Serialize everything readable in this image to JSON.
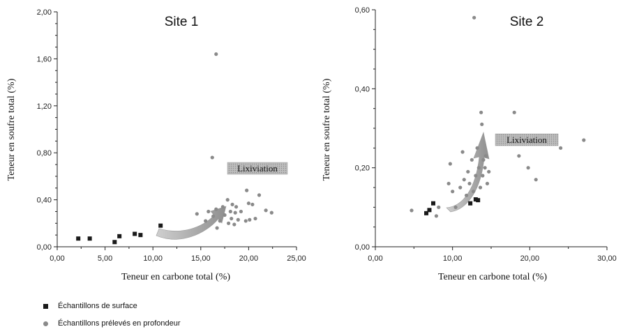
{
  "chart_data": [
    {
      "type": "scatter",
      "title": "Site 1",
      "xlabel": "Teneur en carbone total (%)",
      "ylabel": "Teneur en soufre total (%)",
      "xlim": [
        0,
        25
      ],
      "ylim": [
        0,
        2
      ],
      "x_ticks": [
        "0,00",
        "5,00",
        "10,00",
        "15,00",
        "20,00",
        "25,00"
      ],
      "y_ticks": [
        "0,00",
        "0,40",
        "0,80",
        "1,20",
        "1,60",
        "2,00"
      ],
      "annotation": "Lixiviation",
      "series": [
        {
          "name": "Échantillons de surface",
          "marker": "square",
          "color": "#1a1a1a",
          "points": [
            [
              2.2,
              0.07
            ],
            [
              3.4,
              0.07
            ],
            [
              6.0,
              0.04
            ],
            [
              6.5,
              0.09
            ],
            [
              8.1,
              0.11
            ],
            [
              8.7,
              0.1
            ],
            [
              10.8,
              0.18
            ]
          ]
        },
        {
          "name": "Échantillons prélevés en profondeur",
          "marker": "circle",
          "color": "#8a8a8a",
          "points": [
            [
              16.6,
              1.64
            ],
            [
              16.2,
              0.76
            ],
            [
              14.6,
              0.28
            ],
            [
              15.5,
              0.22
            ],
            [
              15.8,
              0.3
            ],
            [
              16.3,
              0.26
            ],
            [
              16.6,
              0.32
            ],
            [
              16.7,
              0.16
            ],
            [
              17.0,
              0.22
            ],
            [
              17.3,
              0.34
            ],
            [
              17.5,
              0.27
            ],
            [
              17.8,
              0.4
            ],
            [
              17.9,
              0.2
            ],
            [
              18.1,
              0.3
            ],
            [
              18.2,
              0.24
            ],
            [
              18.3,
              0.36
            ],
            [
              18.5,
              0.19
            ],
            [
              18.6,
              0.29
            ],
            [
              18.7,
              0.34
            ],
            [
              18.9,
              0.23
            ],
            [
              19.2,
              0.3
            ],
            [
              19.7,
              0.22
            ],
            [
              19.8,
              0.48
            ],
            [
              20.0,
              0.37
            ],
            [
              20.1,
              0.23
            ],
            [
              20.4,
              0.36
            ],
            [
              20.7,
              0.24
            ],
            [
              21.1,
              0.44
            ],
            [
              21.8,
              0.31
            ],
            [
              22.4,
              0.29
            ]
          ]
        }
      ]
    },
    {
      "type": "scatter",
      "title": "Site 2",
      "xlabel": "Teneur en carbone total (%)",
      "ylabel": "Teneur en soufre total (%)",
      "xlim": [
        0,
        30
      ],
      "ylim": [
        0,
        0.6
      ],
      "x_ticks": [
        "0,00",
        "10,00",
        "20,00",
        "30,00"
      ],
      "y_ticks": [
        "0,00",
        "0,20",
        "0,40",
        "0,60"
      ],
      "annotation": "Lixiviation",
      "series": [
        {
          "name": "Échantillons de surface",
          "marker": "square",
          "color": "#1a1a1a",
          "points": [
            [
              6.6,
              0.085
            ],
            [
              7.0,
              0.093
            ],
            [
              7.5,
              0.11
            ],
            [
              12.3,
              0.11
            ],
            [
              13.0,
              0.12
            ],
            [
              13.3,
              0.118
            ]
          ]
        },
        {
          "name": "Échantillons prélevés en profondeur",
          "marker": "circle",
          "color": "#8a8a8a",
          "points": [
            [
              4.7,
              0.092
            ],
            [
              7.9,
              0.078
            ],
            [
              8.2,
              0.1
            ],
            [
              9.5,
              0.16
            ],
            [
              9.7,
              0.21
            ],
            [
              10.0,
              0.14
            ],
            [
              10.4,
              0.1
            ],
            [
              11.0,
              0.15
            ],
            [
              11.3,
              0.24
            ],
            [
              11.5,
              0.17
            ],
            [
              11.8,
              0.13
            ],
            [
              12.0,
              0.19
            ],
            [
              12.2,
              0.16
            ],
            [
              12.5,
              0.22
            ],
            [
              12.7,
              0.14
            ],
            [
              12.8,
              0.58
            ],
            [
              13.0,
              0.18
            ],
            [
              13.2,
              0.25
            ],
            [
              13.4,
              0.2
            ],
            [
              13.6,
              0.15
            ],
            [
              13.7,
              0.34
            ],
            [
              13.8,
              0.31
            ],
            [
              13.9,
              0.18
            ],
            [
              14.0,
              0.22
            ],
            [
              14.2,
              0.2
            ],
            [
              14.3,
              0.23
            ],
            [
              14.5,
              0.16
            ],
            [
              14.7,
              0.19
            ],
            [
              18.0,
              0.34
            ],
            [
              18.6,
              0.23
            ],
            [
              19.8,
              0.2
            ],
            [
              20.8,
              0.17
            ],
            [
              24.0,
              0.25
            ],
            [
              27.0,
              0.27
            ]
          ]
        }
      ]
    }
  ]
}
